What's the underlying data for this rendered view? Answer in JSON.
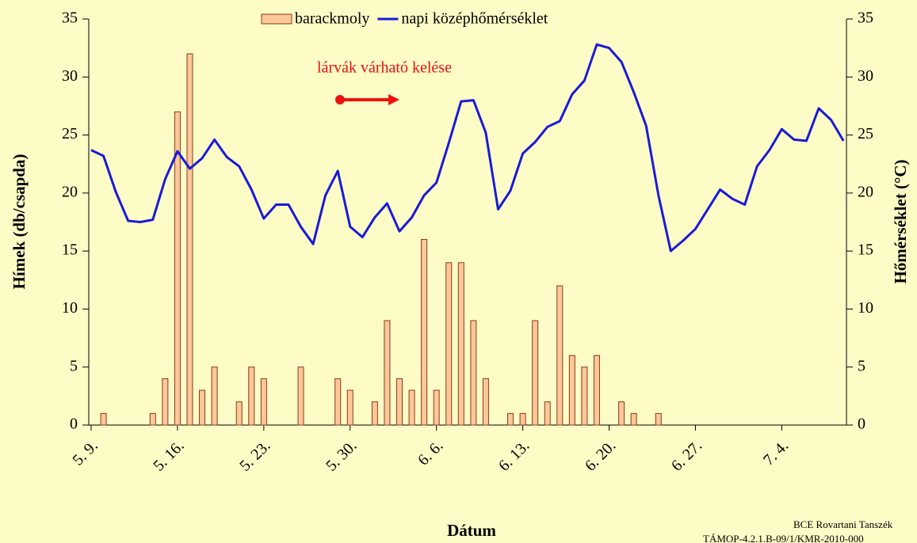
{
  "chart_data": {
    "type": "bar",
    "categories": [
      "5. 9.",
      null,
      null,
      null,
      null,
      null,
      null,
      "5. 16.",
      null,
      null,
      null,
      null,
      null,
      null,
      "5. 23.",
      null,
      null,
      null,
      null,
      null,
      null,
      "5. 30.",
      null,
      null,
      null,
      null,
      null,
      null,
      "6. 6.",
      null,
      null,
      null,
      null,
      null,
      null,
      "6. 13.",
      null,
      null,
      null,
      null,
      null,
      null,
      "6. 20.",
      null,
      null,
      null,
      null,
      null,
      null,
      "6. 27.",
      null,
      null,
      null,
      null,
      null,
      null,
      "7. 4.",
      null,
      null,
      null,
      null,
      null
    ],
    "series": [
      {
        "name": "barackmoly",
        "type": "bar",
        "color": "#fcc89a",
        "values": [
          null,
          1,
          null,
          null,
          null,
          1,
          4,
          27,
          32,
          3,
          5,
          null,
          2,
          5,
          4,
          null,
          null,
          5,
          null,
          null,
          4,
          3,
          null,
          2,
          9,
          4,
          3,
          16,
          3,
          14,
          14,
          9,
          4,
          null,
          1,
          1,
          9,
          2,
          12,
          6,
          5,
          6,
          null,
          2,
          1,
          null,
          1,
          null,
          null,
          null,
          null,
          null,
          null,
          null,
          null,
          null,
          null,
          null,
          null,
          null,
          null,
          null
        ]
      },
      {
        "name": "napi középhőmérséklet",
        "type": "line",
        "color": "#1a1ad8",
        "axis": "y2",
        "values": [
          23.7,
          23.2,
          20.1,
          17.6,
          17.5,
          17.7,
          21.2,
          23.6,
          22.1,
          23.0,
          24.6,
          23.1,
          22.3,
          20.3,
          17.8,
          19.0,
          19.0,
          17.1,
          15.6,
          19.8,
          21.9,
          17.1,
          16.2,
          17.9,
          19.1,
          16.7,
          17.9,
          19.8,
          20.9,
          24.3,
          27.9,
          28.0,
          25.2,
          18.6,
          20.2,
          23.4,
          24.4,
          25.7,
          26.2,
          28.5,
          29.7,
          32.8,
          32.5,
          31.3,
          28.7,
          25.8,
          19.8,
          15.0,
          15.9,
          16.9,
          18.6,
          20.3,
          19.5,
          19.0,
          22.3,
          23.7,
          25.5,
          24.6,
          24.5,
          27.3,
          26.3,
          24.5
        ]
      }
    ],
    "ylabel": "Hímek (db/csapda)",
    "y2label": "Hőmérséklet (°C)",
    "xlabel": "Dátum",
    "ylim": [
      0,
      35
    ],
    "yticks": [
      0,
      5,
      10,
      15,
      20,
      25,
      30,
      35
    ],
    "y2lim": [
      0,
      35
    ],
    "y2ticks": [
      0,
      5,
      10,
      15,
      20,
      25,
      30,
      35
    ],
    "annotation": "lárvák várható kelése",
    "credits": [
      "BCE Rovartani Tanszék",
      "TÁMOP-4.2.1.B-09/1/KMR-2010-000"
    ]
  }
}
